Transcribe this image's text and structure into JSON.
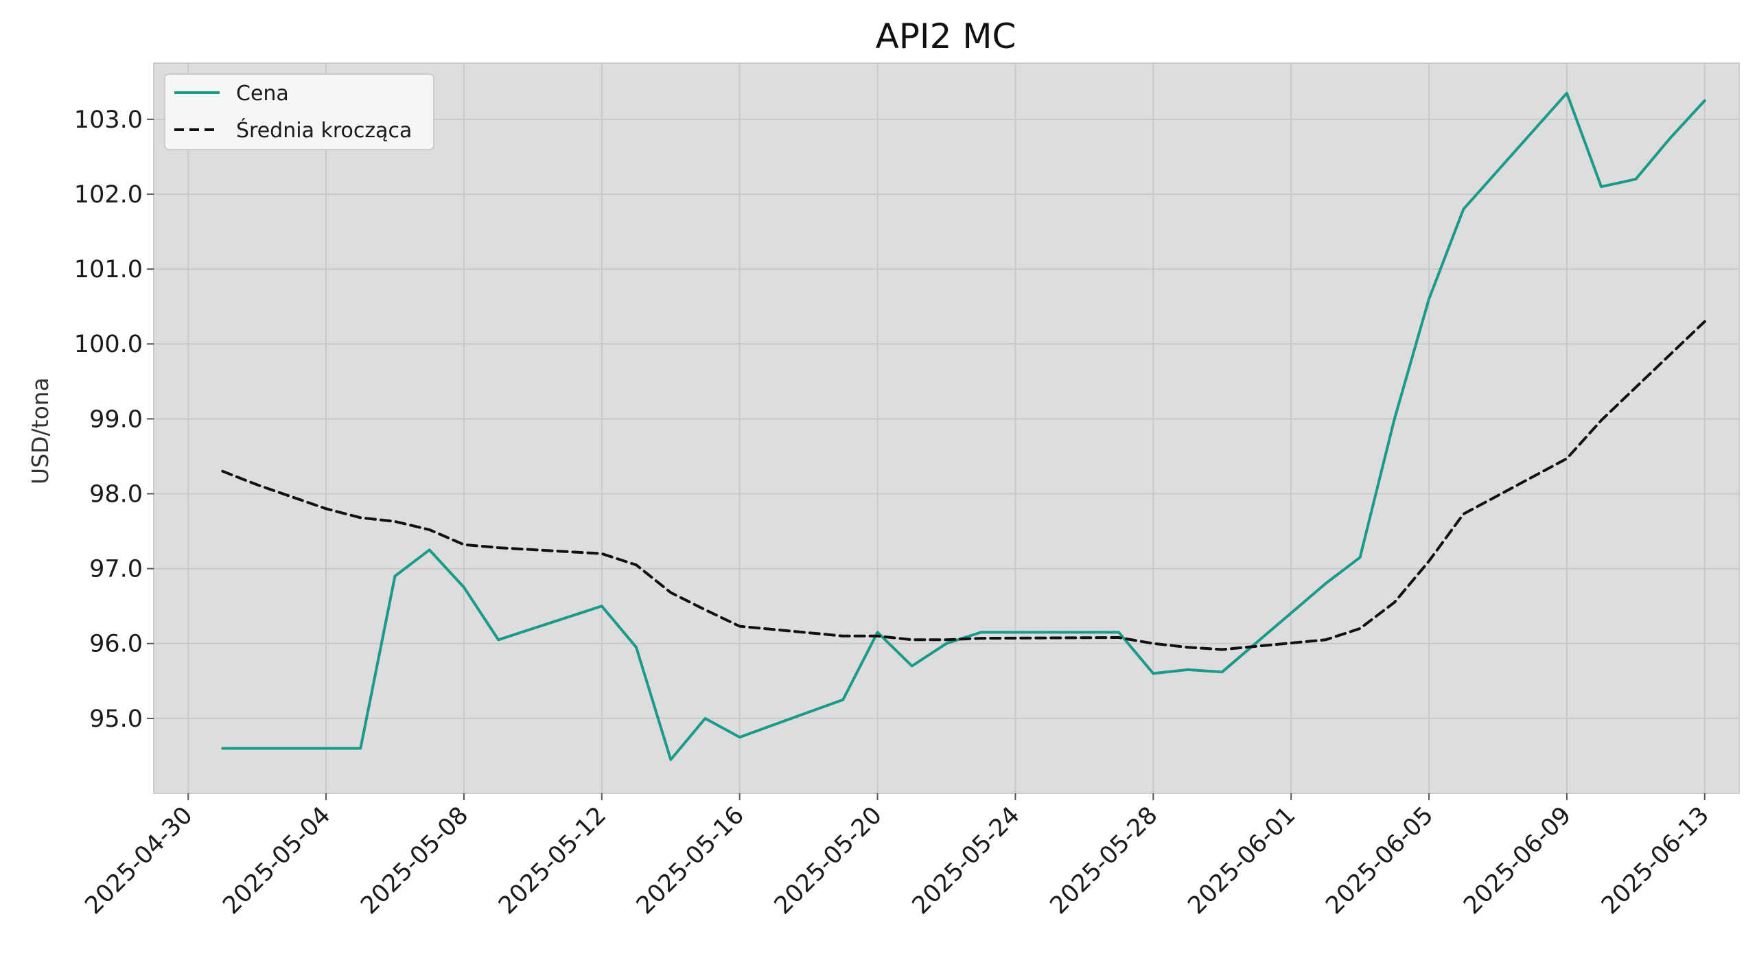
{
  "chart_data": {
    "type": "line",
    "title": "API2 MC",
    "xlabel": "",
    "ylabel": "USD/tona",
    "xlim": [
      "2025-04-29",
      "2025-06-14"
    ],
    "ylim": [
      94.0,
      103.75
    ],
    "grid": true,
    "legend_position": "top-left",
    "x_ticks": [
      "2025-04-30",
      "2025-05-04",
      "2025-05-08",
      "2025-05-12",
      "2025-05-16",
      "2025-05-20",
      "2025-05-24",
      "2025-05-28",
      "2025-06-01",
      "2025-06-05",
      "2025-06-09",
      "2025-06-13"
    ],
    "y_ticks": [
      "95.0",
      "96.0",
      "97.0",
      "98.0",
      "99.0",
      "100.0",
      "101.0",
      "102.0",
      "103.0"
    ],
    "series": [
      {
        "name": "Cena",
        "color": "#1a9a8a",
        "style": "solid",
        "points": [
          [
            "2025-05-01",
            94.6
          ],
          [
            "2025-05-02",
            94.6
          ],
          [
            "2025-05-03",
            94.6
          ],
          [
            "2025-05-04",
            94.6
          ],
          [
            "2025-05-05",
            94.6
          ],
          [
            "2025-05-06",
            96.9
          ],
          [
            "2025-05-07",
            97.25
          ],
          [
            "2025-05-08",
            96.75
          ],
          [
            "2025-05-09",
            96.05
          ],
          [
            "2025-05-12",
            96.5
          ],
          [
            "2025-05-13",
            95.95
          ],
          [
            "2025-05-14",
            94.45
          ],
          [
            "2025-05-15",
            95.0
          ],
          [
            "2025-05-16",
            94.75
          ],
          [
            "2025-05-19",
            95.25
          ],
          [
            "2025-05-20",
            96.15
          ],
          [
            "2025-05-21",
            95.7
          ],
          [
            "2025-05-22",
            96.0
          ],
          [
            "2025-05-23",
            96.15
          ],
          [
            "2025-05-27",
            96.15
          ],
          [
            "2025-05-28",
            95.6
          ],
          [
            "2025-05-29",
            95.65
          ],
          [
            "2025-05-30",
            95.62
          ],
          [
            "2025-06-02",
            96.8
          ],
          [
            "2025-06-03",
            97.15
          ],
          [
            "2025-06-04",
            99.0
          ],
          [
            "2025-06-05",
            100.6
          ],
          [
            "2025-06-06",
            101.8
          ],
          [
            "2025-06-09",
            103.35
          ],
          [
            "2025-06-10",
            102.1
          ],
          [
            "2025-06-11",
            102.2
          ],
          [
            "2025-06-12",
            102.75
          ],
          [
            "2025-06-13",
            103.25
          ]
        ]
      },
      {
        "name": "Średnia krocząca",
        "color": "#111111",
        "style": "dashed",
        "points": [
          [
            "2025-05-01",
            98.3
          ],
          [
            "2025-05-02",
            98.12
          ],
          [
            "2025-05-03",
            97.96
          ],
          [
            "2025-05-04",
            97.8
          ],
          [
            "2025-05-05",
            97.68
          ],
          [
            "2025-05-06",
            97.63
          ],
          [
            "2025-05-07",
            97.52
          ],
          [
            "2025-05-08",
            97.32
          ],
          [
            "2025-05-09",
            97.28
          ],
          [
            "2025-05-12",
            97.2
          ],
          [
            "2025-05-13",
            97.05
          ],
          [
            "2025-05-14",
            96.68
          ],
          [
            "2025-05-15",
            96.45
          ],
          [
            "2025-05-16",
            96.23
          ],
          [
            "2025-05-19",
            96.1
          ],
          [
            "2025-05-20",
            96.1
          ],
          [
            "2025-05-21",
            96.05
          ],
          [
            "2025-05-22",
            96.05
          ],
          [
            "2025-05-23",
            96.07
          ],
          [
            "2025-05-27",
            96.08
          ],
          [
            "2025-05-28",
            96.0
          ],
          [
            "2025-05-29",
            95.95
          ],
          [
            "2025-05-30",
            95.92
          ],
          [
            "2025-06-02",
            96.05
          ],
          [
            "2025-06-03",
            96.2
          ],
          [
            "2025-06-04",
            96.55
          ],
          [
            "2025-06-05",
            97.1
          ],
          [
            "2025-06-06",
            97.73
          ],
          [
            "2025-06-09",
            98.47
          ],
          [
            "2025-06-10",
            98.98
          ],
          [
            "2025-06-11",
            99.42
          ],
          [
            "2025-06-12",
            99.86
          ],
          [
            "2025-06-13",
            100.3
          ]
        ]
      }
    ]
  }
}
